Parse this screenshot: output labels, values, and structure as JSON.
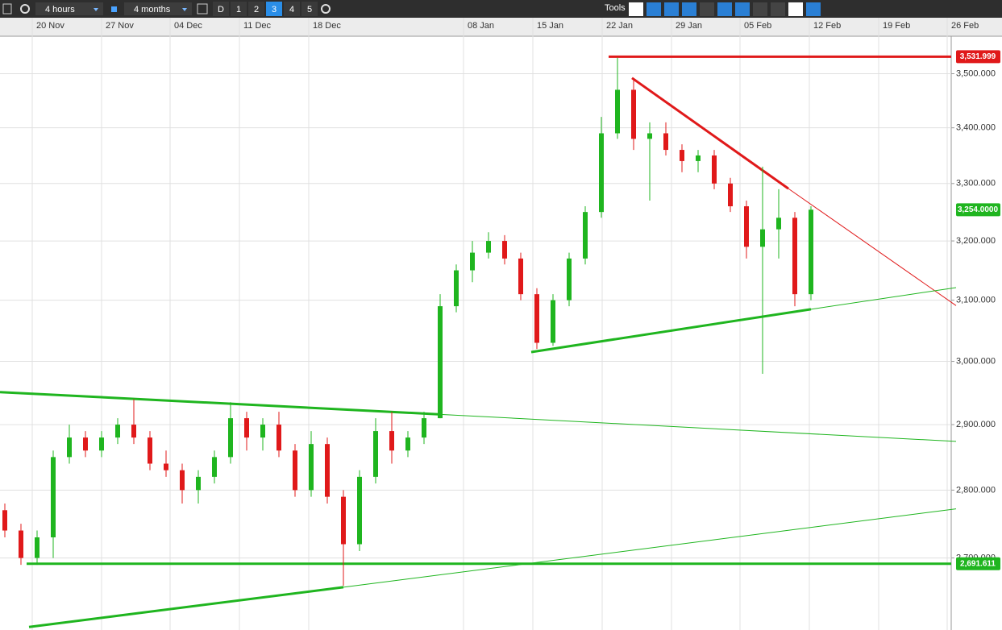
{
  "toolbar": {
    "interval": "4 hours",
    "range": "4 months",
    "buttons": [
      "D",
      "1",
      "2",
      "3",
      "4",
      "5"
    ],
    "tools": "Tools"
  },
  "chart_data": {
    "type": "candlestick",
    "log_scale": true,
    "grid": true,
    "up_color": "#1fb51f",
    "down_color": "#e0191a",
    "xlim": [
      -0.3,
      58.7
    ],
    "xticks": [
      {
        "value": 1.7,
        "label": "20 Nov"
      },
      {
        "value": 6.0,
        "label": "27 Nov"
      },
      {
        "value": 10.25,
        "label": "04 Dec"
      },
      {
        "value": 14.55,
        "label": "11 Dec"
      },
      {
        "value": 18.85,
        "label": "18 Dec"
      },
      {
        "value": 28.45,
        "label": "08 Jan"
      },
      {
        "value": 32.75,
        "label": "15 Jan"
      },
      {
        "value": 37.05,
        "label": "22 Jan"
      },
      {
        "value": 41.35,
        "label": "29 Jan"
      },
      {
        "value": 45.6,
        "label": "05 Feb"
      },
      {
        "value": 49.9,
        "label": "12 Feb"
      },
      {
        "value": 54.2,
        "label": "19 Feb"
      },
      {
        "value": 58.45,
        "label": "26 Feb"
      }
    ],
    "ylim": [
      2600,
      3571
    ],
    "yticks": [
      {
        "value": 2700,
        "label": "2,700.000"
      },
      {
        "value": 2800,
        "label": "2,800.000"
      },
      {
        "value": 2900,
        "label": "2,900.000"
      },
      {
        "value": 3000,
        "label": "3,000.000"
      },
      {
        "value": 3100,
        "label": "3,100.000"
      },
      {
        "value": 3200,
        "label": "3,200.000"
      },
      {
        "value": 3300,
        "label": "3,300.000"
      },
      {
        "value": 3400,
        "label": "3,400.000"
      },
      {
        "value": 3500,
        "label": "3,500.000"
      }
    ],
    "open": [
      2770,
      2740,
      2700,
      2730,
      2850,
      2880,
      2860,
      2880,
      2900,
      2880,
      2840,
      2830,
      2800,
      2820,
      2850,
      2910,
      2880,
      2900,
      2860,
      2800,
      2870,
      2790,
      2720,
      2820,
      2890,
      2860,
      2880,
      2910,
      3090,
      3150,
      3180,
      3200,
      3170,
      3110,
      3030,
      3100,
      3170,
      3250,
      3390,
      3470,
      3380,
      3390,
      3360,
      3340,
      3350,
      3300,
      3260,
      3190,
      3220,
      3240,
      3110
    ],
    "high": [
      2780,
      2750,
      2740,
      2860,
      2900,
      2890,
      2890,
      2910,
      2940,
      2890,
      2860,
      2840,
      2830,
      2860,
      2935,
      2920,
      2910,
      2920,
      2870,
      2890,
      2880,
      2800,
      2830,
      2910,
      2920,
      2890,
      2920,
      3110,
      3160,
      3200,
      3215,
      3210,
      3180,
      3120,
      3110,
      3180,
      3260,
      3420,
      3530,
      3490,
      3410,
      3410,
      3370,
      3360,
      3360,
      3310,
      3270,
      3330,
      3290,
      3250,
      3260
    ],
    "low": [
      2730,
      2690,
      2690,
      2700,
      2840,
      2850,
      2850,
      2870,
      2870,
      2830,
      2820,
      2780,
      2780,
      2810,
      2840,
      2860,
      2860,
      2850,
      2790,
      2790,
      2780,
      2660,
      2710,
      2810,
      2840,
      2850,
      2870,
      2910,
      3080,
      3130,
      3170,
      3160,
      3100,
      3020,
      3025,
      3090,
      3160,
      3240,
      3380,
      3360,
      3270,
      3350,
      3320,
      3320,
      3290,
      3250,
      3170,
      2980,
      3170,
      3090,
      3100
    ],
    "close": [
      2740,
      2700,
      2730,
      2850,
      2880,
      2860,
      2880,
      2900,
      2880,
      2840,
      2830,
      2800,
      2820,
      2850,
      2910,
      2880,
      2900,
      2860,
      2800,
      2870,
      2790,
      2720,
      2820,
      2890,
      2860,
      2880,
      2910,
      3090,
      3150,
      3180,
      3200,
      3170,
      3110,
      3030,
      3100,
      3170,
      3250,
      3390,
      3470,
      3380,
      3390,
      3360,
      3340,
      3350,
      3300,
      3260,
      3190,
      3220,
      3240,
      3110,
      3254
    ],
    "trendlines": [
      {
        "color": "#e0191a",
        "points": [
          [
            38.9,
            3492
          ],
          [
            48.6,
            3291
          ],
          [
            59,
            3091
          ]
        ]
      },
      {
        "color": "#1fb51f",
        "points": [
          [
            32.65,
            3015
          ],
          [
            50,
            3085
          ],
          [
            59,
            3121
          ]
        ]
      },
      {
        "color": "#1fb51f",
        "points": [
          [
            -0.3,
            2951
          ],
          [
            27,
            2916
          ],
          [
            59,
            2874
          ]
        ]
      },
      {
        "color": "#1fb51f",
        "points": [
          [
            1.5,
            2602
          ],
          [
            21,
            2658
          ],
          [
            59,
            2772
          ]
        ]
      },
      {
        "color": "#e0191a",
        "points": [
          [
            37.45,
            3531.999
          ],
          [
            58.7,
            3531.999
          ]
        ]
      },
      {
        "color": "#1fb51f",
        "points": [
          [
            1.35,
            2691.611
          ],
          [
            58.7,
            2691.611
          ]
        ]
      }
    ],
    "price_tags": [
      {
        "value": 3531.999,
        "label": "3,531.999",
        "color": "#e0191a"
      },
      {
        "value": 3254.0,
        "label": "3,254.0000",
        "color": "#1fb51f"
      },
      {
        "value": 2691.611,
        "label": "2,691.611",
        "color": "#1fb51f"
      }
    ]
  }
}
